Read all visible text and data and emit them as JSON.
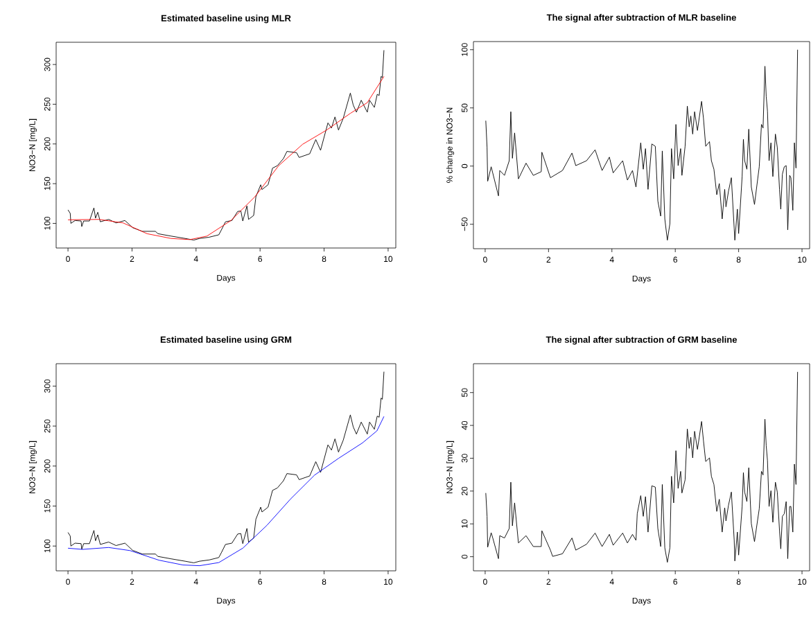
{
  "chart_data": [
    {
      "type": "line",
      "title": "Estimated baseline using MLR",
      "xlabel": "Days",
      "ylabel": "NO3−N [mg/L]",
      "xlim": [
        -0.37,
        10.24
      ],
      "ylim": [
        69,
        328
      ],
      "xticks": [
        0,
        2,
        4,
        6,
        8,
        10
      ],
      "yticks": [
        100,
        150,
        200,
        250,
        300
      ],
      "marker": "none",
      "series": [
        {
          "color": "#000000",
          "x": [
            0,
            0.07,
            0.09,
            0.22,
            0.41,
            0.43,
            0.49,
            0.67,
            0.81,
            0.86,
            0.93,
            1.01,
            1.27,
            1.5,
            1.78,
            2.02,
            2.32,
            2.73,
            2.81,
            3.22,
            3.66,
            3.93,
            4.11,
            4.41,
            4.71,
            4.79,
            4.92,
            5.12,
            5.3,
            5.4,
            5.46,
            5.59,
            5.64,
            5.8,
            5.87,
            6.02,
            6.06,
            6.25,
            6.39,
            6.54,
            6.73,
            6.84,
            7.14,
            7.22,
            7.55,
            7.74,
            7.89,
            8.12,
            8.23,
            8.34,
            8.45,
            8.6,
            8.82,
            8.91,
            9.01,
            9.16,
            9.35,
            9.42,
            9.57,
            9.66,
            9.72,
            9.78,
            9.82,
            9.87
          ],
          "values": [
            117,
            112.6,
            100,
            103.6,
            103,
            96,
            103,
            103,
            119.5,
            106.6,
            114,
            102,
            105,
            100.6,
            103.6,
            94.6,
            90,
            90,
            87,
            84,
            81,
            79,
            81,
            82.6,
            85.6,
            91.6,
            102,
            103.6,
            115,
            115.6,
            103,
            122,
            105,
            110,
            133.6,
            148.6,
            142.6,
            148.6,
            169.6,
            172.6,
            181.6,
            190.6,
            189,
            183,
            187.6,
            205.5,
            192,
            226.5,
            220,
            234,
            217.5,
            232.5,
            264,
            249,
            240,
            255,
            240,
            255,
            246,
            262.5,
            261,
            285,
            283.5,
            318
          ]
        },
        {
          "color": "#ff0000",
          "x": [
            0,
            0.97,
            1.72,
            2.47,
            3.22,
            3.81,
            4.34,
            5.09,
            5.84,
            6.58,
            7.33,
            8.08,
            8.82,
            9.35,
            9.87
          ],
          "values": [
            104.5,
            105,
            100.6,
            87,
            81,
            79.6,
            84,
            103.6,
            133.6,
            172.6,
            199.6,
            217.5,
            238.5,
            252,
            285
          ]
        }
      ]
    },
    {
      "type": "line",
      "title": "The signal after subtraction of MLR baseline",
      "xlabel": "Days",
      "ylabel": "% change in NO3−N",
      "xlim": [
        -0.37,
        10.24
      ],
      "ylim": [
        -71,
        107
      ],
      "xticks": [
        0,
        2,
        4,
        6,
        8,
        10
      ],
      "yticks": [
        {
          "value": -50,
          "label": "−50"
        },
        0,
        50,
        100
      ],
      "marker": "none",
      "series": [
        {
          "color": "#000000",
          "x": [
            0.02,
            0.06,
            0.08,
            0.19,
            0.24,
            0.42,
            0.46,
            0.61,
            0.76,
            0.81,
            0.86,
            0.93,
            1.05,
            1.29,
            1.52,
            1.77,
            1.79,
            2.06,
            2.44,
            2.74,
            2.86,
            3.2,
            3.47,
            3.69,
            3.92,
            4.04,
            4.34,
            4.49,
            4.65,
            4.76,
            4.91,
            4.99,
            5.06,
            5.14,
            5.26,
            5.37,
            5.45,
            5.54,
            5.59,
            5.67,
            5.75,
            5.83,
            5.88,
            5.95,
            6.02,
            6.09,
            6.17,
            6.21,
            6.31,
            6.38,
            6.44,
            6.49,
            6.55,
            6.61,
            6.7,
            6.83,
            6.89,
            6.96,
            7.08,
            7.14,
            7.22,
            7.31,
            7.39,
            7.48,
            7.56,
            7.6,
            7.68,
            7.77,
            7.86,
            7.88,
            7.96,
            8.0,
            8.11,
            8.15,
            8.19,
            8.26,
            8.32,
            8.4,
            8.5,
            8.65,
            8.72,
            8.77,
            8.83,
            8.87,
            8.91,
            8.96,
            9.02,
            9.08,
            9.16,
            9.22,
            9.29,
            9.33,
            9.38,
            9.44,
            9.5,
            9.55,
            9.61,
            9.65,
            9.71,
            9.76,
            9.81,
            9.86
          ],
          "values": [
            39,
            16,
            -13,
            -0.6,
            -6,
            -25.6,
            -3.8,
            -8,
            4.6,
            46.7,
            6.7,
            28.5,
            -11,
            2.5,
            -8,
            -4.8,
            11.9,
            -10,
            -3.8,
            11.2,
            0.4,
            4.6,
            14,
            -3.8,
            7.7,
            -5.8,
            4.6,
            -12,
            -3.8,
            -18,
            20,
            -2.7,
            15,
            -20,
            19,
            17,
            -30,
            -43,
            13,
            -45.4,
            -63.7,
            -49.6,
            15,
            -11,
            35.8,
            0.4,
            15,
            -8,
            17,
            51.5,
            33.7,
            43,
            27.5,
            46.7,
            30.6,
            55.6,
            41,
            17,
            21,
            4.6,
            -2.7,
            -24.6,
            -15,
            -45.4,
            -20,
            -35,
            -21.5,
            -10,
            -53.7,
            -63.7,
            -37,
            -58,
            -9,
            23,
            4.6,
            -2.7,
            31.7,
            -18,
            -33,
            -0.6,
            35.8,
            32.7,
            85.8,
            59.8,
            47.3,
            4.6,
            20,
            -9,
            27.5,
            16,
            -20,
            -37,
            -7,
            -0.6,
            0.4,
            -54.8,
            -8,
            -10,
            -38,
            20,
            -1.7,
            100
          ]
        }
      ]
    },
    {
      "type": "line",
      "title": "Estimated baseline using GRM",
      "xlabel": "Days",
      "ylabel": "NO3−N [mg/L]",
      "xlim": [
        -0.37,
        10.24
      ],
      "ylim": [
        69,
        328
      ],
      "xticks": [
        0,
        2,
        4,
        6,
        8,
        10
      ],
      "yticks": [
        100,
        150,
        200,
        250,
        300
      ],
      "marker": "none",
      "series": [
        {
          "color": "#000000",
          "x": [
            0,
            0.07,
            0.09,
            0.22,
            0.41,
            0.43,
            0.49,
            0.67,
            0.81,
            0.86,
            0.93,
            1.01,
            1.27,
            1.5,
            1.78,
            2.02,
            2.32,
            2.73,
            2.81,
            3.22,
            3.66,
            3.93,
            4.11,
            4.41,
            4.71,
            4.79,
            4.92,
            5.12,
            5.3,
            5.4,
            5.46,
            5.59,
            5.64,
            5.8,
            5.87,
            6.02,
            6.06,
            6.25,
            6.39,
            6.54,
            6.73,
            6.84,
            7.14,
            7.22,
            7.55,
            7.74,
            7.89,
            8.12,
            8.23,
            8.34,
            8.45,
            8.6,
            8.82,
            8.91,
            9.01,
            9.16,
            9.35,
            9.42,
            9.57,
            9.66,
            9.72,
            9.78,
            9.82,
            9.87
          ],
          "values": [
            117,
            112.6,
            100,
            103.6,
            103,
            96,
            103,
            103,
            119.5,
            106.6,
            114,
            102,
            105,
            100.6,
            103.6,
            94.6,
            90,
            90,
            87,
            84,
            81,
            79,
            81,
            82.6,
            85.6,
            91.6,
            102,
            103.6,
            115,
            115.6,
            103,
            122,
            105,
            110,
            133.6,
            148.6,
            142.6,
            148.6,
            169.6,
            172.6,
            181.6,
            190.6,
            189,
            183,
            187.6,
            205.5,
            192,
            226.5,
            220,
            234,
            217.5,
            232.5,
            264,
            249,
            240,
            255,
            240,
            255,
            246,
            262.5,
            261,
            285,
            283.5,
            318
          ]
        },
        {
          "color": "#0000ff",
          "x": [
            0,
            0.45,
            1.27,
            1.94,
            2.84,
            3.59,
            4.11,
            4.71,
            5.46,
            6.21,
            6.95,
            7.7,
            8.45,
            9.2,
            9.65,
            9.87
          ],
          "values": [
            97.3,
            95.8,
            98.2,
            94.3,
            82.3,
            76.3,
            75.4,
            79.3,
            97.3,
            125.7,
            158.7,
            188.6,
            209.6,
            229,
            244,
            262
          ]
        }
      ]
    },
    {
      "type": "line",
      "title": "The signal after subtraction of GRM baseline",
      "xlabel": "Days",
      "ylabel": "NO3−N [mg/L]",
      "xlim": [
        -0.37,
        10.24
      ],
      "ylim": [
        -4.3,
        58.8
      ],
      "xticks": [
        0,
        2,
        4,
        6,
        8,
        10
      ],
      "yticks": [
        0,
        10,
        20,
        30,
        40,
        50
      ],
      "marker": "none",
      "series": [
        {
          "color": "#000000",
          "x": [
            0.02,
            0.06,
            0.08,
            0.19,
            0.24,
            0.42,
            0.46,
            0.61,
            0.76,
            0.81,
            0.86,
            0.93,
            1.05,
            1.29,
            1.52,
            1.77,
            1.79,
            2.06,
            2.13,
            2.44,
            2.74,
            2.86,
            3.2,
            3.47,
            3.69,
            3.92,
            4.04,
            4.34,
            4.49,
            4.65,
            4.76,
            4.8,
            4.91,
            4.99,
            5.06,
            5.14,
            5.26,
            5.37,
            5.45,
            5.54,
            5.59,
            5.67,
            5.75,
            5.83,
            5.88,
            5.95,
            6.02,
            6.09,
            6.17,
            6.21,
            6.31,
            6.38,
            6.44,
            6.49,
            6.55,
            6.61,
            6.7,
            6.83,
            6.89,
            6.96,
            7.08,
            7.14,
            7.22,
            7.31,
            7.39,
            7.48,
            7.56,
            7.6,
            7.68,
            7.77,
            7.86,
            7.88,
            7.96,
            8.0,
            8.11,
            8.15,
            8.19,
            8.26,
            8.32,
            8.4,
            8.5,
            8.65,
            8.72,
            8.77,
            8.83,
            8.87,
            8.91,
            8.96,
            9.02,
            9.08,
            9.16,
            9.22,
            9.29,
            9.33,
            9.38,
            9.44,
            9.5,
            9.55,
            9.61,
            9.65,
            9.71,
            9.76,
            9.81,
            9.86
          ],
          "values": [
            19.4,
            12.3,
            2.9,
            7.3,
            5.7,
            -0.6,
            6.4,
            5.7,
            8.6,
            22.7,
            9.4,
            16.4,
            4.2,
            6.4,
            3.1,
            3.1,
            7.9,
            2.0,
            0.1,
            0.9,
            5.7,
            2.0,
            3.8,
            7.2,
            3.1,
            6.8,
            3.5,
            7.2,
            4.2,
            6.8,
            5.0,
            13.1,
            18.6,
            12.3,
            18.3,
            7.5,
            21.6,
            21.2,
            8.6,
            3.1,
            22.0,
            2.7,
            -1.7,
            2.7,
            24.5,
            16.4,
            32.3,
            20.8,
            26.0,
            19.4,
            23.4,
            38.9,
            33.0,
            36.4,
            30.1,
            38.2,
            32.7,
            41.2,
            35.3,
            29.0,
            30.1,
            24.5,
            22.0,
            13.8,
            17.5,
            7.5,
            14.9,
            10.9,
            15.7,
            19.7,
            5.0,
            -1.3,
            7.5,
            0.5,
            15.3,
            25.6,
            19.7,
            16.8,
            27.1,
            10.1,
            4.6,
            14.6,
            26.0,
            24.9,
            41.9,
            33.8,
            29.3,
            15.3,
            20.1,
            10.5,
            22.7,
            19.7,
            7.9,
            2.4,
            12.3,
            13.1,
            16.8,
            -0.6,
            15.3,
            15.3,
            7.5,
            28.2,
            22.0,
            56.3
          ]
        }
      ]
    }
  ]
}
